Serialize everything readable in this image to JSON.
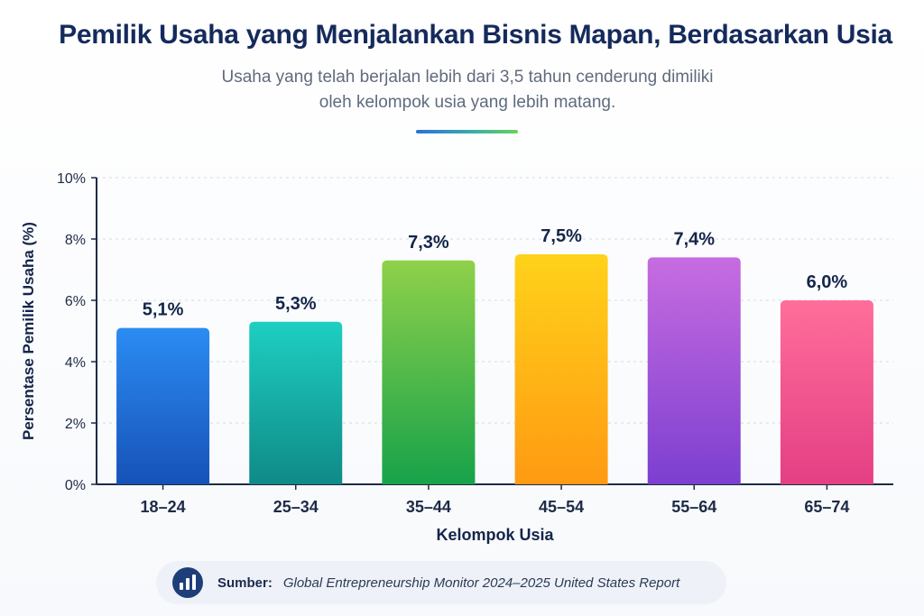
{
  "header": {
    "title": "Pemilik Usaha yang Menjalankan Bisnis Mapan, Berdasarkan Usia",
    "subtitle_line1": "Usaha yang telah berjalan lebih dari 3,5 tahun cenderung dimiliki",
    "subtitle_line2": "oleh kelompok usia yang lebih matang."
  },
  "chart_data": {
    "type": "bar",
    "categories": [
      "18–24",
      "25–34",
      "35–44",
      "45–54",
      "55–64",
      "65–74"
    ],
    "values": [
      5.1,
      5.3,
      7.3,
      7.5,
      7.4,
      6.0
    ],
    "value_labels": [
      "5,1%",
      "5,3%",
      "7,3%",
      "7,5%",
      "7,4%",
      "6,0%"
    ],
    "xlabel": "Kelompok Usia",
    "ylabel": "Persentase Pemilik Usaha (%)",
    "ylim": [
      0,
      10
    ],
    "yticks": [
      0,
      2,
      4,
      6,
      8,
      10
    ],
    "ytick_labels": [
      "0%",
      "2%",
      "4%",
      "6%",
      "8%",
      "10%"
    ],
    "grid": true,
    "bar_gradients": [
      [
        "#2b8cf2",
        "#1652b8"
      ],
      [
        "#1ecfc2",
        "#0f8a87"
      ],
      [
        "#8fd14a",
        "#17a24a"
      ],
      [
        "#ffd21a",
        "#ff9a12"
      ],
      [
        "#c76ce0",
        "#7c3fd0"
      ],
      [
        "#ff6e9a",
        "#e43f84"
      ]
    ]
  },
  "source": {
    "label": "Sumber:",
    "text": "Global Entrepreneurship Monitor 2024–2025 United States Report",
    "icon": "bar-chart-icon"
  }
}
